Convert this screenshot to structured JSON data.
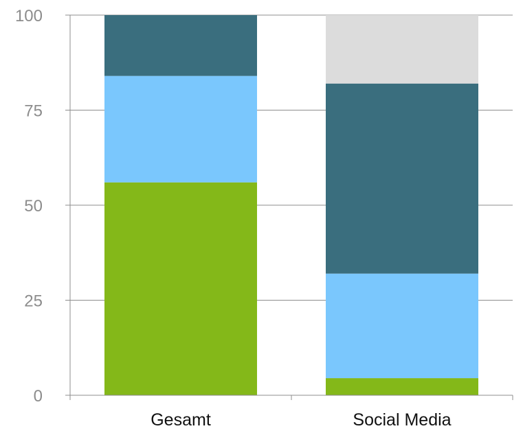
{
  "chart_data": {
    "type": "bar",
    "stacked": true,
    "title": "",
    "xlabel": "",
    "ylabel": "",
    "ylim": [
      0,
      100
    ],
    "yticks": [
      0,
      25,
      50,
      75,
      100
    ],
    "grid": true,
    "categories": [
      "Gesamt",
      "Social Media"
    ],
    "series": [
      {
        "color": "#84b819",
        "values": [
          56,
          4.5
        ]
      },
      {
        "color": "#7ac7fd",
        "values": [
          28,
          27.5
        ]
      },
      {
        "color": "#3a6e7e",
        "values": [
          16,
          50
        ]
      },
      {
        "color": "#dcdcdc",
        "values": [
          0,
          18
        ]
      }
    ],
    "colors": {
      "grid": "#8c8c8c",
      "tick_text": "#8c8c8c",
      "category_text": "#111111"
    }
  }
}
